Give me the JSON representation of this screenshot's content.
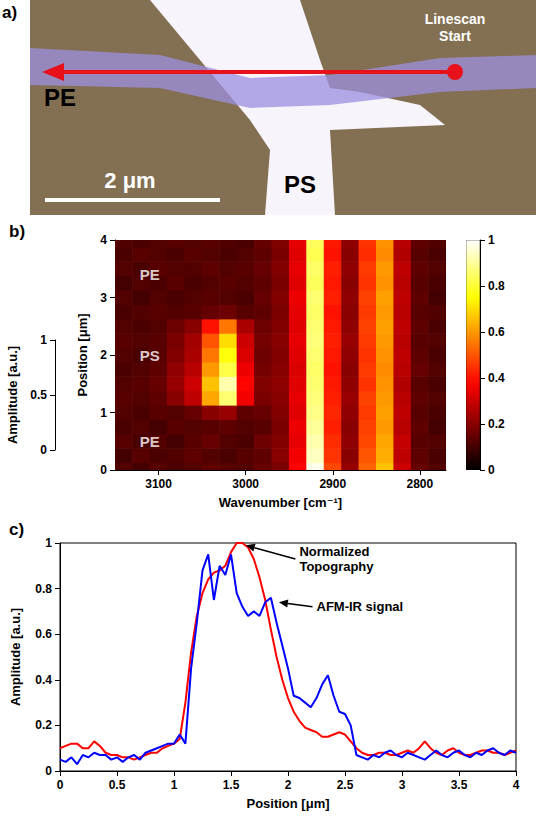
{
  "image_panel": {
    "label": "a)",
    "fiber": "PE",
    "film": "PS",
    "linescan_start": "Linescan Start",
    "scale_bar": "2 μm"
  },
  "chart_data": [
    {
      "type": "heatmap",
      "title": "b)",
      "x_label": "Wavenumber [cm⁻¹]",
      "y_label": "Position [μm]",
      "z_label": "Amplitude [a.u.]",
      "x": [
        3140,
        3120,
        3100,
        3080,
        3060,
        3040,
        3020,
        3000,
        2980,
        2960,
        2940,
        2920,
        2900,
        2880,
        2860,
        2840,
        2820,
        2800,
        2780
      ],
      "y": [
        0,
        0.25,
        0.5,
        0.75,
        1,
        1.25,
        1.5,
        1.75,
        2,
        2.25,
        2.5,
        2.75,
        3,
        3.25,
        3.5,
        3.75,
        4
      ],
      "cells": [
        [
          0.12,
          0.1,
          0.13,
          0.11,
          0.12,
          0.14,
          0.13,
          0.12,
          0.15,
          0.18,
          0.38,
          0.98,
          0.48,
          0.22,
          0.52,
          0.66,
          0.3,
          0.15,
          0.12
        ],
        [
          0.1,
          0.13,
          0.11,
          0.12,
          0.14,
          0.12,
          0.11,
          0.13,
          0.14,
          0.2,
          0.36,
          0.94,
          0.45,
          0.2,
          0.5,
          0.63,
          0.28,
          0.14,
          0.11
        ],
        [
          0.13,
          0.11,
          0.12,
          0.1,
          0.13,
          0.15,
          0.12,
          0.11,
          0.16,
          0.19,
          0.34,
          0.92,
          0.44,
          0.21,
          0.48,
          0.62,
          0.29,
          0.13,
          0.12
        ],
        [
          0.11,
          0.12,
          0.1,
          0.13,
          0.12,
          0.13,
          0.14,
          0.12,
          0.13,
          0.18,
          0.35,
          0.9,
          0.42,
          0.2,
          0.47,
          0.6,
          0.27,
          0.14,
          0.1
        ],
        [
          0.12,
          0.11,
          0.13,
          0.12,
          0.15,
          0.2,
          0.22,
          0.14,
          0.15,
          0.19,
          0.33,
          0.88,
          0.43,
          0.21,
          0.46,
          0.61,
          0.28,
          0.13,
          0.11
        ],
        [
          0.13,
          0.12,
          0.14,
          0.2,
          0.28,
          0.62,
          0.86,
          0.36,
          0.18,
          0.2,
          0.34,
          0.87,
          0.42,
          0.22,
          0.47,
          0.6,
          0.27,
          0.14,
          0.12
        ],
        [
          0.12,
          0.13,
          0.15,
          0.22,
          0.3,
          0.66,
          0.92,
          0.38,
          0.19,
          0.21,
          0.33,
          0.86,
          0.41,
          0.21,
          0.45,
          0.59,
          0.26,
          0.13,
          0.11
        ],
        [
          0.11,
          0.12,
          0.14,
          0.21,
          0.27,
          0.6,
          0.82,
          0.35,
          0.17,
          0.2,
          0.32,
          0.85,
          0.4,
          0.2,
          0.46,
          0.58,
          0.27,
          0.15,
          0.12
        ],
        [
          0.12,
          0.11,
          0.13,
          0.19,
          0.25,
          0.55,
          0.76,
          0.32,
          0.16,
          0.19,
          0.33,
          0.86,
          0.41,
          0.21,
          0.45,
          0.59,
          0.28,
          0.14,
          0.11
        ],
        [
          0.13,
          0.12,
          0.13,
          0.18,
          0.24,
          0.5,
          0.7,
          0.3,
          0.17,
          0.2,
          0.34,
          0.87,
          0.42,
          0.22,
          0.46,
          0.6,
          0.27,
          0.13,
          0.12
        ],
        [
          0.12,
          0.11,
          0.12,
          0.16,
          0.2,
          0.4,
          0.55,
          0.25,
          0.16,
          0.19,
          0.33,
          0.86,
          0.41,
          0.21,
          0.47,
          0.61,
          0.28,
          0.14,
          0.11
        ],
        [
          0.11,
          0.12,
          0.13,
          0.12,
          0.13,
          0.15,
          0.16,
          0.13,
          0.14,
          0.18,
          0.34,
          0.85,
          0.4,
          0.2,
          0.46,
          0.6,
          0.27,
          0.13,
          0.12
        ],
        [
          0.12,
          0.1,
          0.12,
          0.11,
          0.12,
          0.13,
          0.12,
          0.11,
          0.15,
          0.19,
          0.35,
          0.86,
          0.42,
          0.21,
          0.47,
          0.61,
          0.28,
          0.14,
          0.1
        ],
        [
          0.1,
          0.12,
          0.11,
          0.13,
          0.11,
          0.12,
          0.13,
          0.12,
          0.14,
          0.18,
          0.33,
          0.84,
          0.41,
          0.2,
          0.45,
          0.59,
          0.27,
          0.13,
          0.11
        ],
        [
          0.12,
          0.11,
          0.13,
          0.12,
          0.12,
          0.14,
          0.12,
          0.13,
          0.15,
          0.19,
          0.34,
          0.85,
          0.42,
          0.21,
          0.46,
          0.6,
          0.28,
          0.14,
          0.12
        ],
        [
          0.11,
          0.13,
          0.12,
          0.11,
          0.13,
          0.12,
          0.11,
          0.12,
          0.14,
          0.18,
          0.33,
          0.83,
          0.4,
          0.2,
          0.44,
          0.58,
          0.26,
          0.13,
          0.11
        ],
        [
          0.12,
          0.11,
          0.12,
          0.13,
          0.12,
          0.13,
          0.12,
          0.11,
          0.15,
          0.19,
          0.34,
          0.84,
          0.41,
          0.21,
          0.45,
          0.59,
          0.27,
          0.14,
          0.12
        ]
      ],
      "xlim": [
        3150,
        2770
      ],
      "xticks": [
        3100,
        3000,
        2900,
        2800
      ],
      "ylim": [
        0,
        4
      ],
      "yticks": [
        0,
        1,
        2,
        3,
        4
      ],
      "zlim": [
        0,
        1
      ],
      "zticks": [
        0,
        0.5,
        1
      ],
      "colorbar": {
        "range": [
          0,
          1
        ],
        "ticks": [
          0,
          0.2,
          0.4,
          0.6,
          0.8,
          1
        ]
      },
      "annotations": [
        {
          "text": "PE",
          "x": 3110,
          "y": 3.4
        },
        {
          "text": "PS",
          "x": 3110,
          "y": 2.0
        },
        {
          "text": "PE",
          "x": 3110,
          "y": 0.5
        }
      ],
      "grid": false
    },
    {
      "type": "line",
      "title": "c)",
      "x_label": "Position [μm]",
      "y_label": "Amplitude [a.u.]",
      "x": [
        0,
        0.05,
        0.1,
        0.15,
        0.2,
        0.25,
        0.3,
        0.35,
        0.4,
        0.45,
        0.5,
        0.55,
        0.6,
        0.65,
        0.7,
        0.75,
        0.8,
        0.85,
        0.9,
        0.95,
        1,
        1.05,
        1.1,
        1.15,
        1.2,
        1.25,
        1.3,
        1.35,
        1.4,
        1.45,
        1.5,
        1.55,
        1.6,
        1.65,
        1.7,
        1.75,
        1.8,
        1.85,
        1.9,
        1.95,
        2,
        2.05,
        2.1,
        2.15,
        2.2,
        2.25,
        2.3,
        2.35,
        2.4,
        2.45,
        2.5,
        2.55,
        2.6,
        2.65,
        2.7,
        2.75,
        2.8,
        2.85,
        2.9,
        2.95,
        3,
        3.05,
        3.1,
        3.15,
        3.2,
        3.25,
        3.3,
        3.35,
        3.4,
        3.45,
        3.5,
        3.55,
        3.6,
        3.65,
        3.7,
        3.75,
        3.8,
        3.85,
        3.9,
        3.95,
        4
      ],
      "series": [
        {
          "name": "Normalized Topography",
          "color": "#ff0000",
          "values": [
            0.1,
            0.11,
            0.12,
            0.12,
            0.1,
            0.1,
            0.13,
            0.11,
            0.08,
            0.07,
            0.07,
            0.06,
            0.06,
            0.05,
            0.06,
            0.07,
            0.08,
            0.08,
            0.1,
            0.11,
            0.12,
            0.14,
            0.3,
            0.52,
            0.68,
            0.78,
            0.84,
            0.87,
            0.88,
            0.9,
            0.96,
            1.0,
            1.0,
            0.98,
            0.93,
            0.85,
            0.75,
            0.62,
            0.5,
            0.4,
            0.32,
            0.26,
            0.22,
            0.19,
            0.18,
            0.17,
            0.15,
            0.15,
            0.16,
            0.17,
            0.16,
            0.13,
            0.1,
            0.08,
            0.07,
            0.07,
            0.08,
            0.08,
            0.07,
            0.07,
            0.08,
            0.09,
            0.08,
            0.1,
            0.13,
            0.1,
            0.08,
            0.07,
            0.09,
            0.1,
            0.08,
            0.07,
            0.07,
            0.08,
            0.09,
            0.09,
            0.08,
            0.08,
            0.07,
            0.08,
            0.09
          ]
        },
        {
          "name": "AFM-IR signal",
          "color": "#0000ff",
          "values": [
            0.05,
            0.04,
            0.06,
            0.03,
            0.07,
            0.06,
            0.08,
            0.07,
            0.07,
            0.05,
            0.06,
            0.04,
            0.06,
            0.07,
            0.05,
            0.08,
            0.09,
            0.1,
            0.11,
            0.12,
            0.12,
            0.16,
            0.12,
            0.45,
            0.65,
            0.88,
            0.95,
            0.75,
            0.9,
            0.86,
            0.95,
            0.78,
            0.72,
            0.68,
            0.7,
            0.68,
            0.74,
            0.76,
            0.65,
            0.55,
            0.45,
            0.33,
            0.32,
            0.3,
            0.28,
            0.32,
            0.38,
            0.42,
            0.33,
            0.26,
            0.25,
            0.2,
            0.07,
            0.06,
            0.05,
            0.07,
            0.06,
            0.08,
            0.09,
            0.07,
            0.06,
            0.08,
            0.07,
            0.06,
            0.05,
            0.07,
            0.09,
            0.07,
            0.06,
            0.08,
            0.09,
            0.07,
            0.06,
            0.08,
            0.07,
            0.09,
            0.1,
            0.08,
            0.07,
            0.09,
            0.08
          ]
        }
      ],
      "xlim": [
        0,
        4
      ],
      "xticks": [
        0,
        0.5,
        1,
        1.5,
        2,
        2.5,
        3,
        3.5,
        4
      ],
      "ylim": [
        0,
        1
      ],
      "yticks": [
        0,
        0.2,
        0.4,
        0.6,
        0.8,
        1
      ],
      "annotations": [
        {
          "text": "Normalized Topography",
          "x": 1.63,
          "y": 0.99,
          "text_x": 2.1,
          "text_y": 0.93
        },
        {
          "text": "AFM-IR signal",
          "x": 1.92,
          "y": 0.74,
          "text_x": 2.25,
          "text_y": 0.72
        }
      ],
      "grid": false
    }
  ]
}
